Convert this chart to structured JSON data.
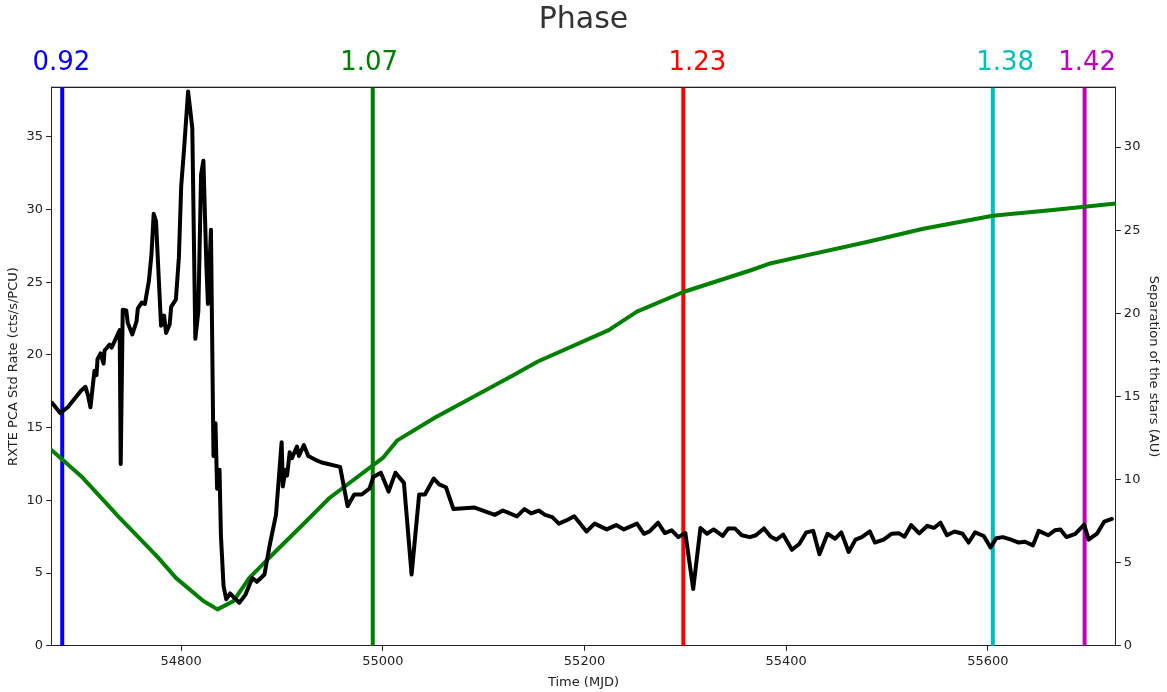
{
  "chart_data": {
    "type": "line",
    "x2label": "Phase",
    "xlabel": "Time (MJD)",
    "x2lim": [
      0.915,
      1.434
    ],
    "x2ticks": [
      0.92,
      1.07,
      1.23,
      1.38,
      1.42
    ],
    "ylabel": "RXTE PCA Std Rate (cts/s/PCU)",
    "y2label": "Separation of the stars (AU)",
    "xlim": [
      54671,
      55727
    ],
    "xticks": [
      54800,
      55000,
      55200,
      55400,
      55600
    ],
    "ylim": [
      0,
      38.4
    ],
    "yticks": [
      0,
      5,
      10,
      15,
      20,
      25,
      30,
      35
    ],
    "y2lim": [
      0,
      33.6
    ],
    "y2ticks": [
      0,
      5,
      10,
      15,
      20,
      25,
      30
    ],
    "grid": false,
    "legend": false,
    "marker": "none",
    "line_style": "solid",
    "series": [
      {
        "color": "#000000",
        "x": [
          54672,
          54680,
          54687.5,
          54700.8,
          54705,
          54707.6,
          54710,
          54713,
          54714,
          54716,
          54717,
          54720,
          54723,
          54724,
          54729,
          54731,
          54739,
          54740,
          54742,
          54745.5,
          54747,
          54751.5,
          54755.7,
          54757,
          54761,
          54764,
          54768,
          54770.5,
          54772.7,
          54775,
          54780,
          54783,
          54785,
          54788.6,
          54790,
          54794.7,
          54797.7,
          54800,
          54803,
          54806.8,
          54808,
          54811,
          54814,
          54817,
          54819.7,
          54822,
          54825,
          54826.5,
          54829.5,
          54832,
          54834,
          54835.6,
          54838,
          54839.4,
          54842,
          54844.7,
          54848.5,
          54852,
          54857.6,
          54863.6,
          54870.5,
          54875,
          54882.6,
          54888,
          54894,
          54899.6,
          54900.8,
          54903.4,
          54905,
          54907.6,
          54909.8,
          54914.8,
          54916.7,
          54921.6,
          54926,
          54932.6,
          54939.4,
          54957.6,
          54965,
          54971.6,
          54979,
          54986.7,
          54990.5,
          54998,
          55005.7,
          55012.5,
          55020.9,
          55028.5,
          55036,
          55041.7,
          55050.5,
          55055.8,
          55062.6,
          55070,
          55091,
          55111,
          55119,
          55133,
          55140.4,
          55147,
          55154.5,
          55161,
          55168,
          55174.6,
          55181.4,
          55189.8,
          55202,
          55210,
          55222,
          55231.5,
          55239,
          55252,
          55259,
          55264.5,
          55273,
          55279.7,
          55286.5,
          55293,
          55300,
          55307.8,
          55315,
          55321.4,
          55328,
          55337,
          55342.6,
          55349,
          55356,
          55364,
          55370,
          55378,
          55384.7,
          55390.4,
          55397,
          55405.7,
          55413,
          55420,
          55426.8,
          55433,
          55441,
          55448.6,
          55454.7,
          55462,
          55468.8,
          55475,
          55483,
          55488,
          55496.7,
          55504.4,
          55512,
          55517.4,
          55524,
          55532,
          55540,
          55546.5,
          55553,
          55559.5,
          55567,
          55575,
          55581,
          55587.4,
          55596,
          55602.7,
          55608.4,
          55615,
          55623,
          55630.6,
          55637,
          55644.7,
          55650.5,
          55660,
          55666.5,
          55672,
          55678,
          55686.8,
          55695.6,
          55700,
          55708.6,
          55715.5,
          55723
        ],
        "values": [
          16.7,
          16.0,
          16.4,
          17.55,
          17.8,
          17.2,
          16.4,
          18.3,
          18.9,
          18.6,
          19.7,
          20.1,
          19.4,
          20.3,
          20.7,
          20.5,
          21.7,
          12.5,
          23.1,
          23.05,
          22.2,
          21.4,
          22.3,
          23.2,
          23.6,
          23.5,
          25.1,
          26.9,
          29.7,
          29.2,
          22.0,
          22.7,
          21.5,
          22.1,
          23.3,
          23.8,
          26.7,
          31.6,
          34.3,
          38.1,
          37.4,
          35.6,
          21.1,
          23.0,
          32.4,
          33.35,
          26.1,
          23.5,
          28.6,
          13.05,
          15.3,
          10.8,
          12.1,
          7.55,
          4.1,
          3.2,
          3.6,
          3.35,
          2.96,
          3.5,
          4.66,
          4.4,
          4.9,
          7.0,
          9.0,
          14.0,
          10.95,
          12.1,
          11.7,
          13.3,
          12.9,
          13.7,
          13.05,
          13.8,
          13.05,
          12.8,
          12.6,
          12.3,
          9.6,
          10.4,
          10.4,
          10.8,
          11.6,
          11.9,
          10.6,
          11.9,
          11.2,
          4.9,
          10.4,
          10.4,
          11.5,
          11.1,
          10.9,
          9.4,
          9.5,
          9.0,
          9.3,
          8.9,
          9.4,
          9.1,
          9.3,
          9.0,
          8.85,
          8.4,
          8.6,
          8.9,
          7.86,
          8.4,
          8.0,
          8.3,
          8.0,
          8.4,
          7.7,
          7.86,
          8.46,
          7.75,
          7.94,
          7.47,
          7.75,
          3.9,
          8.1,
          7.7,
          8.0,
          7.55,
          8.07,
          8.07,
          7.6,
          7.47,
          7.6,
          8.07,
          7.5,
          7.3,
          7.65,
          6.6,
          7.0,
          7.8,
          7.9,
          6.3,
          7.7,
          7.36,
          7.8,
          6.45,
          7.3,
          7.47,
          7.86,
          7.1,
          7.3,
          7.7,
          7.73,
          7.5,
          8.3,
          7.73,
          8.25,
          8.1,
          8.46,
          7.6,
          7.86,
          7.7,
          7.1,
          7.8,
          7.55,
          6.76,
          7.4,
          7.47,
          7.3,
          7.1,
          7.15,
          6.9,
          7.9,
          7.6,
          7.94,
          8.0,
          7.47,
          7.7,
          8.33,
          7.3,
          7.73,
          8.54,
          8.72
        ]
      },
      {
        "color": "#008000",
        "axis": "y2",
        "x": [
          54671,
          54700.8,
          54738,
          54776.5,
          54795,
          54822,
          54836,
          54852,
          54867.4,
          54890,
          54920.5,
          54947,
          55000,
          55014,
          55051,
          55128,
          55153.7,
          55224,
          55252,
          55298,
          55365,
          55384,
          55421,
          55479,
          55536,
          55605,
          55662,
          55727
        ],
        "values": [
          11.8,
          10.2,
          7.76,
          5.35,
          4.07,
          2.7,
          2.19,
          2.7,
          4.07,
          5.46,
          7.28,
          8.89,
          11.3,
          12.34,
          13.7,
          16.23,
          17.1,
          18.99,
          20.1,
          21.28,
          22.59,
          23.0,
          23.5,
          24.27,
          25.09,
          25.87,
          26.2,
          26.6
        ]
      }
    ],
    "ref_lines": [
      {
        "axis": "x",
        "value": 54682,
        "color": "#0000ff"
      },
      {
        "axis": "x",
        "value": 54990,
        "color": "#008000"
      },
      {
        "axis": "x",
        "value": 55298,
        "color": "#ff0000"
      },
      {
        "axis": "x",
        "value": 55605,
        "color": "#00bfbf"
      },
      {
        "axis": "x",
        "value": 55696,
        "color": "#bf00bf"
      }
    ]
  }
}
